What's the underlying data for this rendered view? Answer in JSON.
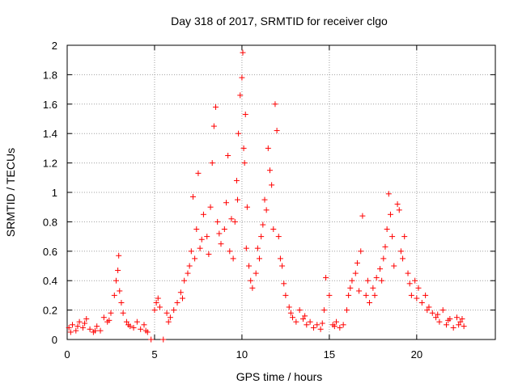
{
  "chart_data": {
    "type": "scatter",
    "title": "Day 318 of 2017, SRMTID for receiver clgo",
    "xlabel": "GPS time / hours",
    "ylabel": "SRMTID / TECUs",
    "xlim": [
      0,
      24.5
    ],
    "ylim": [
      0,
      2
    ],
    "xticks": [
      0,
      5,
      10,
      15,
      20
    ],
    "yticks": [
      0,
      0.2,
      0.4,
      0.6,
      0.8,
      1,
      1.2,
      1.4,
      1.6,
      1.8,
      2
    ],
    "xtick_labels": [
      "0",
      "5",
      "10",
      "15",
      "20"
    ],
    "ytick_labels": [
      "0",
      "0.2",
      "0.4",
      "0.6",
      "0.8",
      "1",
      "1.2",
      "1.4",
      "1.6",
      "1.8",
      "2"
    ],
    "grid": true,
    "marker": "+",
    "marker_color": "#ff0000",
    "series": [
      {
        "name": "SRMTID",
        "points": [
          [
            0.1,
            0.08
          ],
          [
            0.3,
            0.1
          ],
          [
            0.5,
            0.06
          ],
          [
            0.7,
            0.12
          ],
          [
            0.9,
            0.08
          ],
          [
            1.1,
            0.14
          ],
          [
            1.3,
            0.07
          ],
          [
            1.5,
            0.05
          ],
          [
            1.7,
            0.09
          ],
          [
            1.9,
            0.06
          ],
          [
            2.1,
            0.15
          ],
          [
            2.3,
            0.12
          ],
          [
            2.5,
            0.18
          ],
          [
            2.7,
            0.3
          ],
          [
            2.8,
            0.4
          ],
          [
            2.9,
            0.47
          ],
          [
            2.95,
            0.57
          ],
          [
            3.1,
            0.25
          ],
          [
            3.2,
            0.18
          ],
          [
            3.4,
            0.12
          ],
          [
            3.6,
            0.09
          ],
          [
            3.8,
            0.08
          ],
          [
            4.0,
            0.12
          ],
          [
            4.2,
            0.07
          ],
          [
            4.4,
            0.1
          ],
          [
            4.6,
            0.05
          ],
          [
            4.8,
            0.0
          ],
          [
            5.0,
            0.2
          ],
          [
            5.1,
            0.25
          ],
          [
            5.3,
            0.22
          ],
          [
            5.5,
            0.0
          ],
          [
            5.7,
            0.18
          ],
          [
            5.9,
            0.15
          ],
          [
            6.1,
            0.2
          ],
          [
            6.3,
            0.25
          ],
          [
            6.5,
            0.32
          ],
          [
            6.7,
            0.4
          ],
          [
            6.9,
            0.45
          ],
          [
            7.1,
            0.6
          ],
          [
            7.2,
            0.97
          ],
          [
            7.4,
            0.75
          ],
          [
            7.5,
            1.13
          ],
          [
            7.6,
            0.62
          ],
          [
            7.8,
            0.85
          ],
          [
            8.0,
            0.7
          ],
          [
            8.2,
            0.9
          ],
          [
            8.3,
            1.2
          ],
          [
            8.4,
            1.45
          ],
          [
            8.5,
            1.58
          ],
          [
            8.6,
            0.8
          ],
          [
            8.8,
            0.65
          ],
          [
            9.0,
            0.75
          ],
          [
            9.1,
            0.93
          ],
          [
            9.2,
            1.25
          ],
          [
            9.3,
            0.6
          ],
          [
            9.5,
            0.55
          ],
          [
            9.6,
            0.8
          ],
          [
            9.7,
            1.08
          ],
          [
            9.8,
            1.4
          ],
          [
            9.9,
            1.66
          ],
          [
            10.0,
            1.78
          ],
          [
            10.05,
            1.95
          ],
          [
            10.1,
            1.3
          ],
          [
            10.2,
            1.53
          ],
          [
            10.3,
            0.9
          ],
          [
            10.4,
            0.5
          ],
          [
            10.6,
            0.35
          ],
          [
            10.8,
            0.45
          ],
          [
            11.0,
            0.55
          ],
          [
            11.1,
            0.7
          ],
          [
            11.3,
            0.95
          ],
          [
            11.5,
            1.3
          ],
          [
            11.6,
            1.15
          ],
          [
            11.7,
            1.05
          ],
          [
            11.8,
            0.75
          ],
          [
            11.9,
            1.6
          ],
          [
            12.0,
            1.42
          ],
          [
            12.1,
            0.7
          ],
          [
            12.3,
            0.5
          ],
          [
            12.5,
            0.3
          ],
          [
            12.7,
            0.22
          ],
          [
            12.9,
            0.15
          ],
          [
            13.1,
            0.12
          ],
          [
            13.3,
            0.2
          ],
          [
            13.5,
            0.14
          ],
          [
            13.7,
            0.1
          ],
          [
            13.9,
            0.12
          ],
          [
            14.1,
            0.08
          ],
          [
            14.3,
            0.1
          ],
          [
            14.5,
            0.07
          ],
          [
            14.7,
            0.2
          ],
          [
            14.8,
            0.42
          ],
          [
            15.0,
            0.3
          ],
          [
            15.2,
            0.1
          ],
          [
            15.4,
            0.12
          ],
          [
            15.6,
            0.08
          ],
          [
            15.8,
            0.1
          ],
          [
            16.0,
            0.2
          ],
          [
            16.1,
            0.3
          ],
          [
            16.3,
            0.4
          ],
          [
            16.5,
            0.45
          ],
          [
            16.6,
            0.52
          ],
          [
            16.8,
            0.6
          ],
          [
            16.9,
            0.84
          ],
          [
            17.1,
            0.3
          ],
          [
            17.3,
            0.25
          ],
          [
            17.5,
            0.35
          ],
          [
            17.7,
            0.42
          ],
          [
            17.9,
            0.48
          ],
          [
            18.1,
            0.55
          ],
          [
            18.2,
            0.63
          ],
          [
            18.3,
            0.75
          ],
          [
            18.4,
            0.99
          ],
          [
            18.5,
            0.85
          ],
          [
            18.7,
            0.5
          ],
          [
            18.9,
            0.92
          ],
          [
            19.0,
            0.88
          ],
          [
            19.1,
            0.6
          ],
          [
            19.3,
            0.7
          ],
          [
            19.5,
            0.45
          ],
          [
            19.7,
            0.3
          ],
          [
            19.9,
            0.4
          ],
          [
            20.1,
            0.35
          ],
          [
            20.3,
            0.25
          ],
          [
            20.5,
            0.3
          ],
          [
            20.7,
            0.22
          ],
          [
            20.9,
            0.18
          ],
          [
            21.1,
            0.15
          ],
          [
            21.3,
            0.12
          ],
          [
            21.5,
            0.2
          ],
          [
            21.7,
            0.1
          ],
          [
            21.9,
            0.14
          ],
          [
            22.1,
            0.08
          ],
          [
            22.3,
            0.15
          ],
          [
            22.5,
            0.12
          ],
          [
            22.7,
            0.09
          ],
          [
            0.2,
            0.05
          ],
          [
            0.6,
            0.09
          ],
          [
            1.0,
            0.11
          ],
          [
            1.6,
            0.06
          ],
          [
            2.4,
            0.13
          ],
          [
            3.0,
            0.33
          ],
          [
            3.5,
            0.1
          ],
          [
            4.5,
            0.06
          ],
          [
            5.2,
            0.28
          ],
          [
            5.8,
            0.12
          ],
          [
            6.6,
            0.28
          ],
          [
            7.0,
            0.5
          ],
          [
            7.3,
            0.55
          ],
          [
            7.7,
            0.68
          ],
          [
            8.1,
            0.58
          ],
          [
            8.7,
            0.72
          ],
          [
            9.4,
            0.82
          ],
          [
            9.75,
            0.95
          ],
          [
            10.15,
            1.2
          ],
          [
            10.25,
            0.62
          ],
          [
            10.5,
            0.4
          ],
          [
            10.9,
            0.62
          ],
          [
            11.2,
            0.78
          ],
          [
            11.4,
            0.88
          ],
          [
            12.2,
            0.55
          ],
          [
            12.4,
            0.38
          ],
          [
            12.8,
            0.18
          ],
          [
            13.6,
            0.16
          ],
          [
            14.6,
            0.11
          ],
          [
            15.3,
            0.09
          ],
          [
            16.2,
            0.35
          ],
          [
            16.7,
            0.33
          ],
          [
            17.2,
            0.4
          ],
          [
            17.6,
            0.3
          ],
          [
            18.0,
            0.4
          ],
          [
            18.6,
            0.7
          ],
          [
            19.2,
            0.55
          ],
          [
            19.6,
            0.38
          ],
          [
            20.0,
            0.28
          ],
          [
            20.6,
            0.2
          ],
          [
            21.2,
            0.17
          ],
          [
            21.8,
            0.13
          ],
          [
            22.4,
            0.1
          ],
          [
            22.6,
            0.14
          ]
        ]
      }
    ]
  }
}
